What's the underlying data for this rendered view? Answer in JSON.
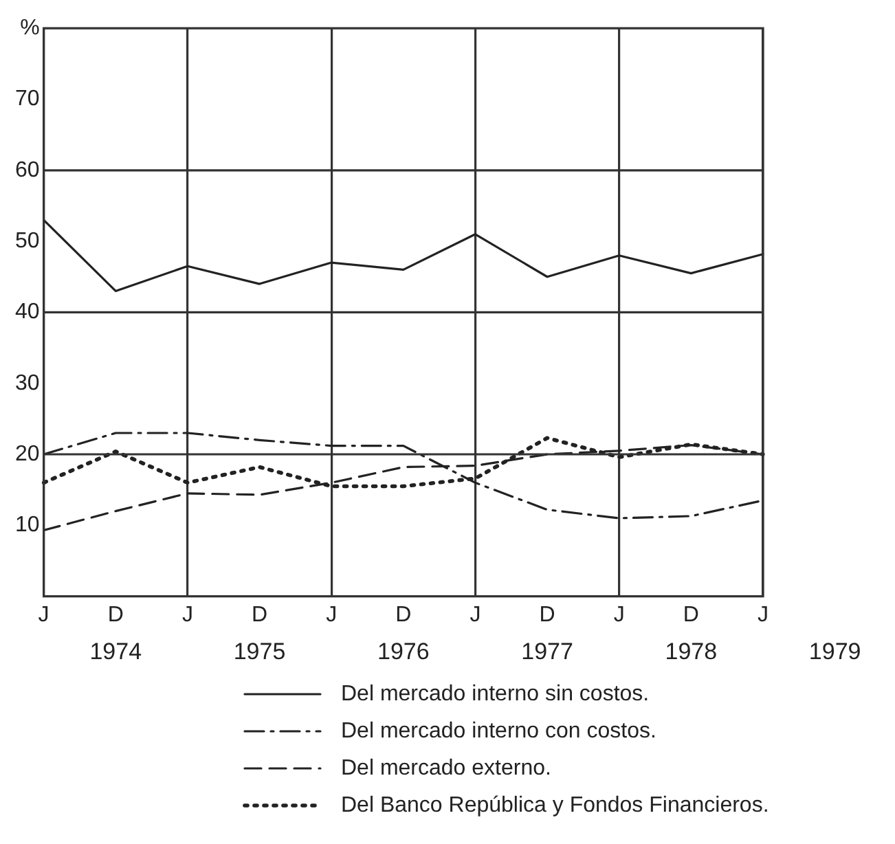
{
  "chart_data": {
    "type": "line",
    "categories": [
      "J",
      "D",
      "J",
      "D",
      "J",
      "D",
      "J",
      "D",
      "J",
      "D",
      "J"
    ],
    "ylim": [
      0,
      80
    ],
    "yticks": [
      10,
      20,
      30,
      40,
      50,
      60,
      70,
      {
        "value": 80,
        "label": "%"
      }
    ],
    "grid": "x",
    "ref_lines": [
      {
        "axis": "y",
        "value": 20
      },
      {
        "axis": "y",
        "value": 40
      },
      {
        "axis": "y",
        "value": 60
      }
    ],
    "annotations": [
      "1974",
      "1975",
      "1976",
      "1977",
      "1978",
      "1979"
    ],
    "legend": "bottom",
    "marker": "none",
    "series": [
      {
        "name": "Del mercado interno sin costos.",
        "color": "#222222",
        "line_style": "solid",
        "values": [
          53,
          43,
          46.5,
          44,
          47,
          46,
          51,
          45,
          48,
          45.5,
          48.2
        ]
      },
      {
        "name": "Del mercado interno con costos.",
        "color": "#222222",
        "line_style": "dashdot",
        "values": [
          20,
          23,
          23,
          22,
          21.2,
          21.2,
          16,
          12.2,
          11,
          11.3,
          13.5
        ]
      },
      {
        "name": "Del mercado externo.",
        "color": "#222222",
        "line_style": "dashed",
        "values": [
          9.3,
          12,
          14.5,
          14.3,
          16,
          18.2,
          18.4,
          20,
          20.5,
          21.3,
          20
        ]
      },
      {
        "name": "Del Banco República y Fondos Financieros.",
        "color": "#222222",
        "line_style": "dotted",
        "values": [
          16,
          20.4,
          16,
          18.2,
          15.5,
          15.5,
          16.6,
          22.3,
          19.6,
          21.4,
          20
        ]
      }
    ]
  }
}
